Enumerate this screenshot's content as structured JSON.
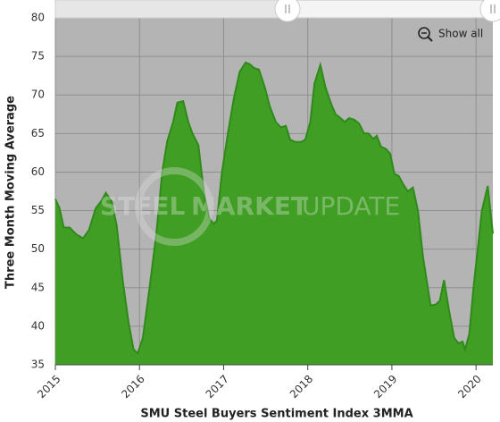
{
  "chart_data": {
    "type": "area",
    "x_label": "SMU Steel Buyers Sentiment Index 3MMA",
    "y_label": "Three Month Moving Average",
    "button": "Show all",
    "watermark": [
      "STEEL",
      "MARKET",
      "UPDATE"
    ],
    "color": "#3f9e23",
    "line_color": "#2f8a1a",
    "grid": true,
    "xlim": [
      2015,
      2020.2
    ],
    "xticks": [
      2015,
      2016,
      2017,
      2018,
      2019,
      2020
    ],
    "ylim": [
      35,
      80
    ],
    "yticks": [
      35,
      40,
      45,
      50,
      55,
      60,
      65,
      70,
      75,
      80
    ],
    "x": [
      2015.0,
      2015.05,
      2015.1,
      2015.17,
      2015.25,
      2015.33,
      2015.4,
      2015.48,
      2015.55,
      2015.6,
      2015.67,
      2015.73,
      2015.8,
      2015.87,
      2015.93,
      2015.98,
      2016.04,
      2016.12,
      2016.2,
      2016.27,
      2016.33,
      2016.4,
      2016.45,
      2016.52,
      2016.58,
      2016.63,
      2016.7,
      2016.77,
      2016.83,
      2016.88,
      2016.92,
      2016.98,
      2017.05,
      2017.12,
      2017.19,
      2017.26,
      2017.31,
      2017.36,
      2017.42,
      2017.49,
      2017.55,
      2017.62,
      2017.68,
      2017.74,
      2017.79,
      2017.85,
      2017.92,
      2017.97,
      2018.03,
      2018.08,
      2018.15,
      2018.21,
      2018.28,
      2018.33,
      2018.39,
      2018.44,
      2018.49,
      2018.55,
      2018.61,
      2018.67,
      2018.72,
      2018.78,
      2018.82,
      2018.87,
      2018.93,
      2018.98,
      2019.03,
      2019.08,
      2019.13,
      2019.19,
      2019.25,
      2019.31,
      2019.37,
      2019.42,
      2019.46,
      2019.52,
      2019.57,
      2019.62,
      2019.68,
      2019.74,
      2019.79,
      2019.84,
      2019.87,
      2019.92,
      2019.97,
      2020.03,
      2020.07,
      2020.14,
      2020.2
    ],
    "values": [
      56.5,
      55.3,
      52.8,
      52.8,
      51.9,
      51.4,
      52.5,
      55.3,
      56.3,
      57.3,
      56.2,
      53.0,
      46.0,
      40.5,
      37.0,
      36.5,
      38.5,
      45.0,
      52.0,
      60.0,
      64.0,
      66.5,
      69.0,
      69.2,
      66.5,
      65.0,
      63.5,
      57.0,
      54.0,
      53.3,
      53.7,
      60.0,
      65.0,
      69.5,
      73.0,
      74.2,
      74.0,
      73.5,
      73.3,
      71.0,
      68.5,
      66.5,
      65.8,
      66.0,
      64.2,
      63.9,
      63.9,
      64.2,
      66.5,
      71.5,
      73.9,
      71.0,
      68.8,
      67.5,
      67.0,
      66.5,
      67.0,
      66.8,
      66.3,
      65.0,
      65.0,
      64.3,
      64.7,
      63.3,
      63.0,
      62.4,
      59.8,
      59.5,
      58.5,
      57.5,
      58.0,
      55.0,
      49.0,
      45.5,
      42.7,
      42.8,
      43.3,
      46.0,
      42.0,
      38.5,
      37.8,
      38.0,
      37.0,
      39.0,
      45.0,
      51.0,
      55.0,
      58.2,
      52.0
    ]
  }
}
